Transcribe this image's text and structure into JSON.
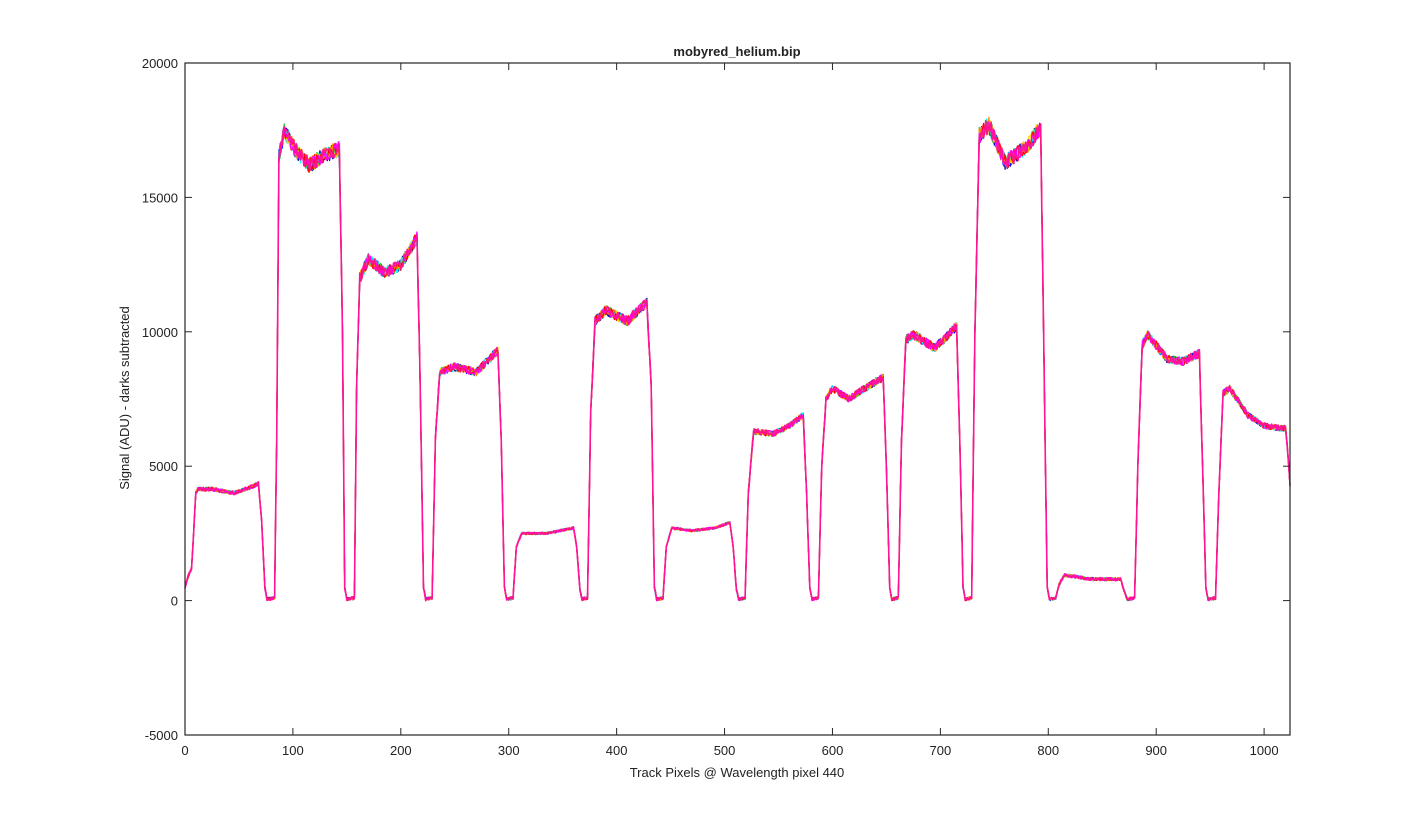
{
  "chart_data": {
    "type": "line",
    "title": "mobyred_helium.bip",
    "xlabel": "Track Pixels @ Wavelength pixel 440",
    "ylabel": "Signal (ADU) - darks subtracted",
    "xlim": [
      0,
      1024
    ],
    "ylim": [
      -5000,
      20000
    ],
    "xticks": [
      0,
      100,
      200,
      300,
      400,
      500,
      600,
      700,
      800,
      900,
      1000
    ],
    "yticks": [
      -5000,
      0,
      5000,
      10000,
      15000,
      20000
    ],
    "grid": false,
    "legend": "none",
    "series_colors": [
      "#00008b",
      "#0000ff",
      "#00bfff",
      "#00ffff",
      "#32cd32",
      "#ffd700",
      "#ff8c00",
      "#ff0000",
      "#ff00ff",
      "#ff1493"
    ],
    "profile_points": [
      [
        0,
        500
      ],
      [
        3,
        900
      ],
      [
        6,
        1200
      ],
      [
        8,
        2500
      ],
      [
        10,
        4000
      ],
      [
        12,
        4150
      ],
      [
        25,
        4150
      ],
      [
        45,
        4000
      ],
      [
        60,
        4200
      ],
      [
        68,
        4350
      ],
      [
        71,
        3000
      ],
      [
        74,
        500
      ],
      [
        76,
        50
      ],
      [
        83,
        100
      ],
      [
        85,
        6000
      ],
      [
        87,
        16500
      ],
      [
        92,
        17500
      ],
      [
        100,
        16900
      ],
      [
        115,
        16200
      ],
      [
        130,
        16600
      ],
      [
        143,
        16800
      ],
      [
        146,
        10000
      ],
      [
        148,
        500
      ],
      [
        150,
        50
      ],
      [
        157,
        100
      ],
      [
        159,
        8000
      ],
      [
        162,
        12000
      ],
      [
        170,
        12700
      ],
      [
        185,
        12200
      ],
      [
        200,
        12500
      ],
      [
        215,
        13500
      ],
      [
        218,
        8000
      ],
      [
        221,
        500
      ],
      [
        223,
        50
      ],
      [
        229,
        100
      ],
      [
        232,
        6000
      ],
      [
        236,
        8500
      ],
      [
        250,
        8700
      ],
      [
        270,
        8500
      ],
      [
        290,
        9300
      ],
      [
        293,
        6000
      ],
      [
        296,
        500
      ],
      [
        298,
        50
      ],
      [
        304,
        100
      ],
      [
        307,
        2000
      ],
      [
        312,
        2500
      ],
      [
        335,
        2500
      ],
      [
        360,
        2700
      ],
      [
        363,
        2000
      ],
      [
        366,
        400
      ],
      [
        368,
        50
      ],
      [
        373,
        100
      ],
      [
        376,
        7000
      ],
      [
        380,
        10400
      ],
      [
        390,
        10800
      ],
      [
        410,
        10400
      ],
      [
        428,
        11100
      ],
      [
        432,
        8000
      ],
      [
        435,
        500
      ],
      [
        437,
        50
      ],
      [
        443,
        100
      ],
      [
        446,
        2000
      ],
      [
        451,
        2700
      ],
      [
        470,
        2600
      ],
      [
        490,
        2700
      ],
      [
        505,
        2900
      ],
      [
        508,
        2000
      ],
      [
        511,
        400
      ],
      [
        513,
        50
      ],
      [
        519,
        100
      ],
      [
        522,
        4000
      ],
      [
        527,
        6300
      ],
      [
        545,
        6200
      ],
      [
        560,
        6500
      ],
      [
        573,
        6900
      ],
      [
        576,
        4000
      ],
      [
        579,
        500
      ],
      [
        581,
        50
      ],
      [
        587,
        100
      ],
      [
        590,
        5000
      ],
      [
        594,
        7500
      ],
      [
        600,
        7900
      ],
      [
        615,
        7500
      ],
      [
        630,
        7900
      ],
      [
        647,
        8300
      ],
      [
        650,
        5000
      ],
      [
        653,
        500
      ],
      [
        655,
        50
      ],
      [
        661,
        100
      ],
      [
        664,
        6000
      ],
      [
        668,
        9700
      ],
      [
        675,
        9900
      ],
      [
        695,
        9400
      ],
      [
        715,
        10200
      ],
      [
        718,
        6000
      ],
      [
        721,
        500
      ],
      [
        723,
        50
      ],
      [
        729,
        100
      ],
      [
        732,
        10000
      ],
      [
        736,
        17300
      ],
      [
        745,
        17700
      ],
      [
        760,
        16300
      ],
      [
        780,
        16900
      ],
      [
        793,
        17600
      ],
      [
        796,
        9000
      ],
      [
        799,
        500
      ],
      [
        801,
        50
      ],
      [
        807,
        100
      ],
      [
        810,
        600
      ],
      [
        815,
        950
      ],
      [
        840,
        800
      ],
      [
        867,
        800
      ],
      [
        870,
        400
      ],
      [
        873,
        50
      ],
      [
        880,
        100
      ],
      [
        883,
        5000
      ],
      [
        887,
        9500
      ],
      [
        892,
        9900
      ],
      [
        910,
        9000
      ],
      [
        925,
        8900
      ],
      [
        940,
        9200
      ],
      [
        943,
        5000
      ],
      [
        946,
        500
      ],
      [
        948,
        50
      ],
      [
        955,
        100
      ],
      [
        958,
        4000
      ],
      [
        962,
        7700
      ],
      [
        968,
        7900
      ],
      [
        985,
        6900
      ],
      [
        1000,
        6500
      ],
      [
        1020,
        6400
      ],
      [
        1022,
        5500
      ],
      [
        1024,
        4300
      ]
    ]
  }
}
